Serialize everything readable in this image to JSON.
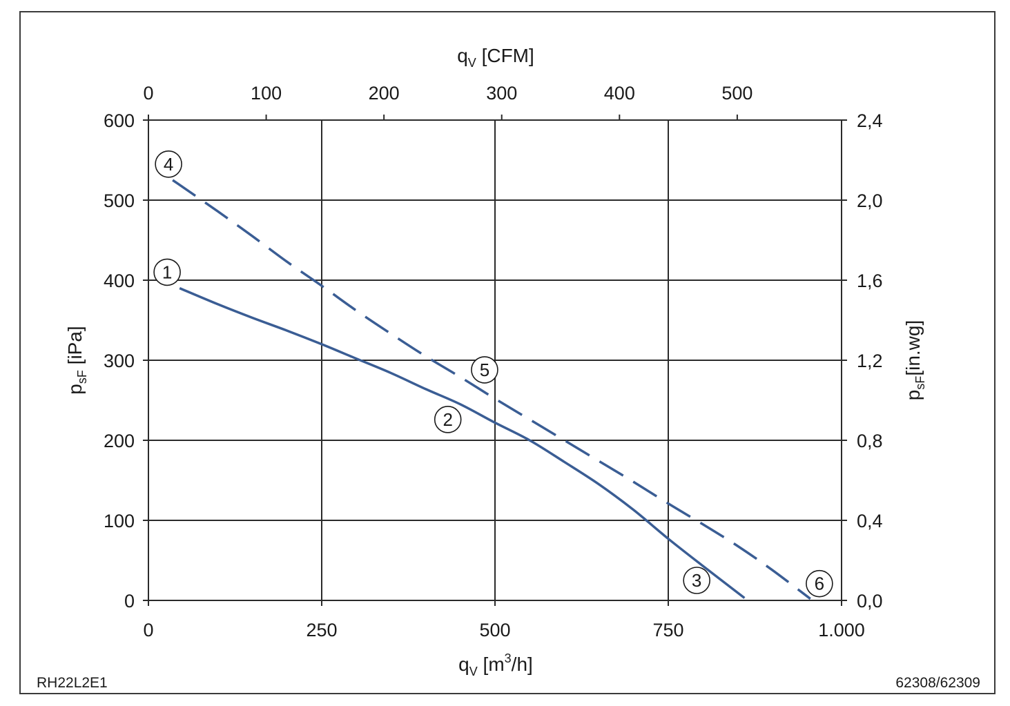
{
  "chart_data": {
    "type": "line",
    "x_axis_bottom": {
      "label_main": "q",
      "label_sub": "V",
      "label_unit_pre": " [m",
      "label_unit_sup": "3",
      "label_unit_post": "/h]",
      "range": [
        0,
        1000
      ],
      "ticks": [
        0,
        250,
        500,
        750,
        1000
      ],
      "tick_labels": [
        "0",
        "250",
        "500",
        "750",
        "1.000"
      ],
      "grid": true
    },
    "x_axis_top": {
      "label_main": "q",
      "label_sub": "V",
      "label_unit": " [CFM]",
      "ticks": [
        0,
        100,
        200,
        300,
        400,
        500
      ],
      "tick_labels": [
        "0",
        "100",
        "200",
        "300",
        "400",
        "500"
      ],
      "scale_m3h_per_cfm": 1.699
    },
    "y_axis_left": {
      "label_main": "p",
      "label_sub": "sF",
      "label_unit": " [iPa]",
      "range": [
        0,
        600
      ],
      "ticks": [
        0,
        100,
        200,
        300,
        400,
        500,
        600
      ],
      "tick_labels": [
        "0",
        "100",
        "200",
        "300",
        "400",
        "500",
        "600"
      ],
      "grid": true
    },
    "y_axis_right": {
      "label_main": "p",
      "label_sub": "sF",
      "label_unit": "[in.wg]",
      "ticks": [
        0.0,
        0.4,
        0.8,
        1.2,
        1.6,
        2.0,
        2.4
      ],
      "tick_labels": [
        "0,0",
        "0,4",
        "0,8",
        "1,2",
        "1,6",
        "2,0",
        "2,4"
      ],
      "scale_pa_per_inwg": 250
    },
    "series": [
      {
        "style": "solid",
        "color": "#3a5d94",
        "x": [
          45,
          100,
          150,
          200,
          250,
          300,
          350,
          400,
          450,
          500,
          550,
          600,
          650,
          700,
          750,
          800,
          860
        ],
        "y": [
          390,
          370,
          353,
          337,
          320,
          302,
          284,
          264,
          245,
          222,
          200,
          173,
          145,
          113,
          77,
          43,
          3
        ]
      },
      {
        "style": "dashed",
        "color": "#3a5d94",
        "x": [
          35,
          100,
          150,
          200,
          250,
          300,
          350,
          400,
          450,
          500,
          550,
          600,
          650,
          700,
          750,
          800,
          850,
          900,
          955
        ],
        "y": [
          525,
          486,
          455,
          423,
          393,
          362,
          333,
          305,
          279,
          252,
          226,
          200,
          174,
          148,
          121,
          95,
          68,
          38,
          2
        ]
      }
    ],
    "markers": [
      {
        "label": "1",
        "x": 27,
        "y": 410
      },
      {
        "label": "2",
        "x": 432,
        "y": 226
      },
      {
        "label": "3",
        "x": 791,
        "y": 25
      },
      {
        "label": "4",
        "x": 29,
        "y": 545
      },
      {
        "label": "5",
        "x": 485,
        "y": 288
      },
      {
        "label": "6",
        "x": 968,
        "y": 21
      }
    ]
  },
  "footer": {
    "left_code": "RH22L2E1",
    "right_code": "62308/62309"
  }
}
